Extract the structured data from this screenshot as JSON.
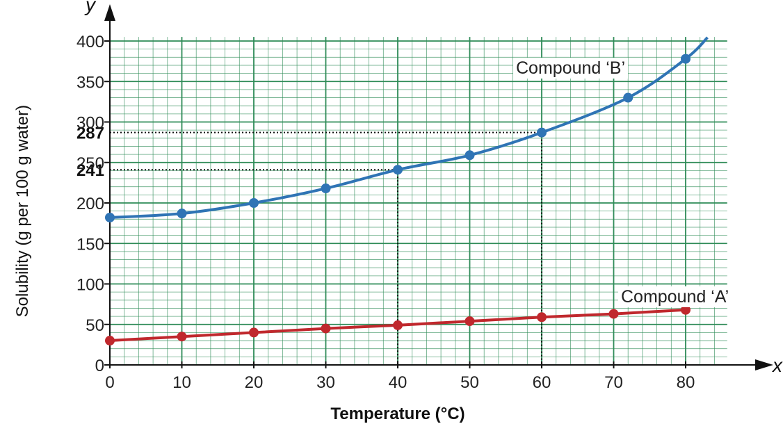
{
  "chart_data": {
    "type": "line",
    "xlabel": "Temperature (°C)",
    "ylabel": "Solubility (g per 100 g water)",
    "x_axis_letter": "x",
    "y_axis_letter": "y",
    "xlim": [
      0,
      85
    ],
    "ylim": [
      0,
      405
    ],
    "x_ticks": [
      "0",
      "10",
      "20",
      "30",
      "40",
      "50",
      "60",
      "70",
      "80"
    ],
    "y_ticks": [
      "0",
      "50",
      "100",
      "150",
      "200",
      "250",
      "300",
      "350",
      "400"
    ],
    "grid": true,
    "colors": {
      "grid": "#2e8b57",
      "compound_b": "#2f74b5",
      "compound_a": "#c0282d",
      "axis": "#111111"
    },
    "series": [
      {
        "name": "Compound ‘B’",
        "x": [
          0,
          10,
          20,
          30,
          40,
          50,
          60,
          72,
          80
        ],
        "y": [
          182,
          187,
          200,
          218,
          241,
          259,
          287,
          330,
          378
        ]
      },
      {
        "name": "Compound ‘A’",
        "x": [
          0,
          10,
          20,
          30,
          40,
          50,
          60,
          70,
          80
        ],
        "y": [
          30,
          35,
          40,
          45,
          49,
          54,
          59,
          63,
          68
        ]
      }
    ],
    "reference_lines": [
      {
        "label": "287",
        "x": 60,
        "y": 287
      },
      {
        "label": "241",
        "x": 40,
        "y": 241
      }
    ]
  }
}
